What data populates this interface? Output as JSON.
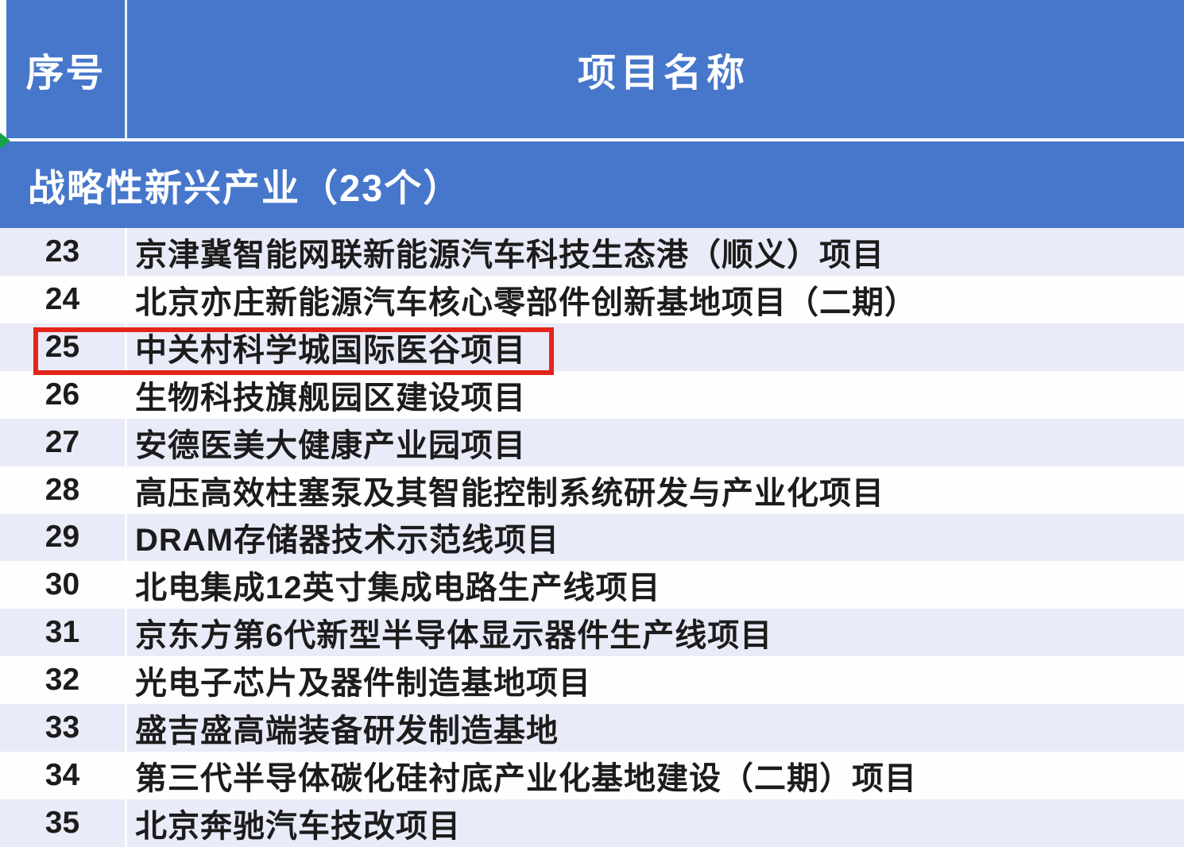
{
  "header": {
    "col_serial": "序号",
    "col_project": "项目名称"
  },
  "section": {
    "title": "战略性新兴产业（23个）"
  },
  "rows": [
    {
      "num": "23",
      "name": "京津冀智能网联新能源汽车科技生态港（顺义）项目"
    },
    {
      "num": "24",
      "name": "北京亦庄新能源汽车核心零部件创新基地项目（二期）"
    },
    {
      "num": "25",
      "name": "中关村科学城国际医谷项目"
    },
    {
      "num": "26",
      "name": "生物科技旗舰园区建设项目"
    },
    {
      "num": "27",
      "name": "安德医美大健康产业园项目"
    },
    {
      "num": "28",
      "name": "高压高效柱塞泵及其智能控制系统研发与产业化项目"
    },
    {
      "num": "29",
      "name": "DRAM存储器技术示范线项目"
    },
    {
      "num": "30",
      "name": "北电集成12英寸集成电路生产线项目"
    },
    {
      "num": "31",
      "name": "京东方第6代新型半导体显示器件生产线项目"
    },
    {
      "num": "32",
      "name": "光电子芯片及器件制造基地项目"
    },
    {
      "num": "33",
      "name": "盛吉盛高端装备研发制造基地"
    },
    {
      "num": "34",
      "name": "第三代半导体碳化硅衬底产业化基地建设（二期）项目"
    },
    {
      "num": "35",
      "name": "北京奔驰汽车技改项目"
    }
  ],
  "highlight": {
    "row_num": "25"
  },
  "colors": {
    "header_blue": "#4777cb",
    "row_alt_lavender": "#e9ebf8",
    "row_white": "#fefefe",
    "highlight_red": "#e5241b",
    "marker_green": "#18a24b",
    "text_dark": "#1c1c1c"
  }
}
